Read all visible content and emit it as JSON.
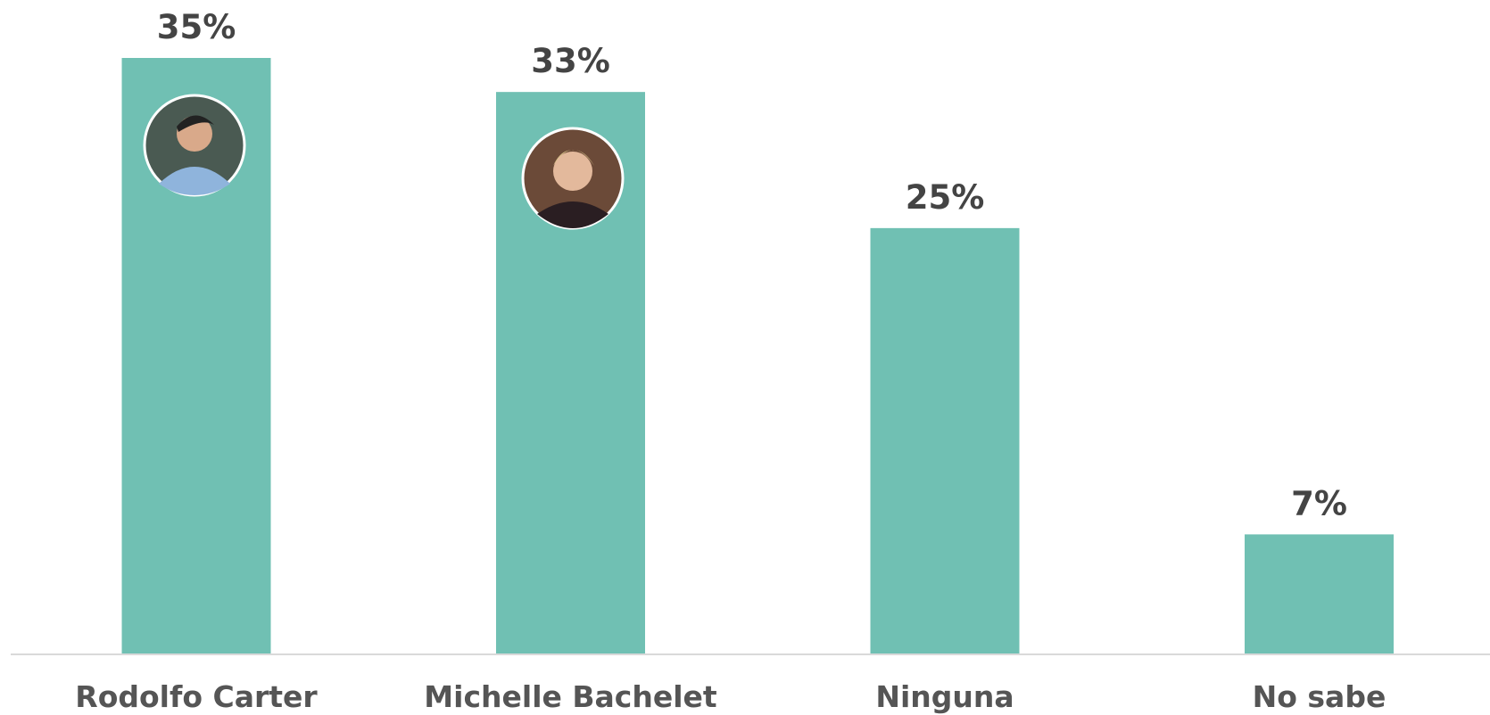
{
  "chart_data": {
    "type": "bar",
    "categories": [
      "Rodolfo Carter",
      "Michelle Bachelet",
      "Ninguna",
      "No sabe"
    ],
    "values": [
      35,
      33,
      25,
      7
    ],
    "value_labels": [
      "35%",
      "33%",
      "25%",
      "7%"
    ],
    "color": "#70c0b3"
  }
}
